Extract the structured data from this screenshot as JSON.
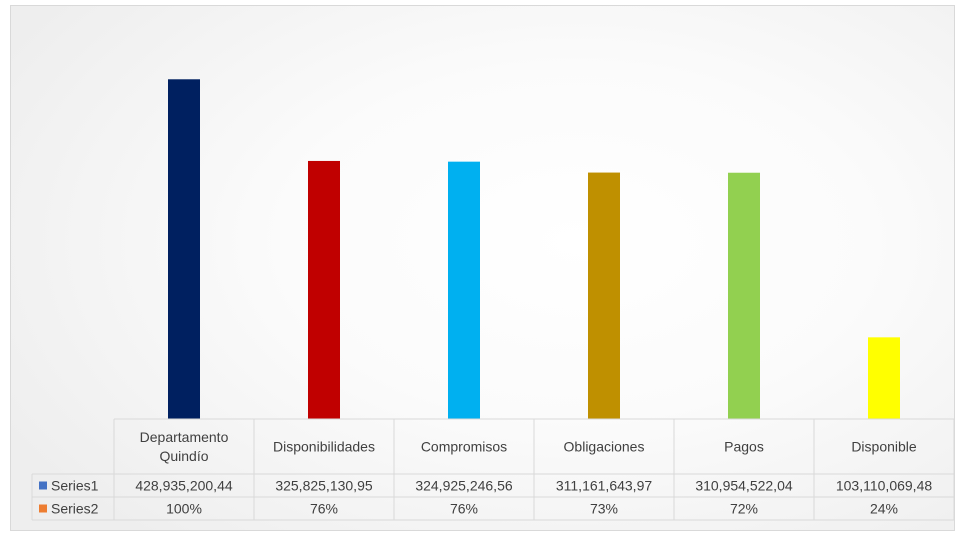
{
  "chart_data": {
    "type": "bar",
    "categories": [
      [
        "Departamento",
        "Quindío"
      ],
      [
        "Disponibilidades"
      ],
      [
        "Compromisos"
      ],
      [
        "Obligaciones"
      ],
      [
        "Pagos"
      ],
      [
        "Disponible"
      ]
    ],
    "category_colors": [
      "#002060",
      "#c00000",
      "#00b0f0",
      "#bf9000",
      "#92d050",
      "#ffff00"
    ],
    "series": [
      {
        "name": "Series1",
        "color": "#4472c4",
        "values": [
          428935200.44,
          325825130.95,
          324925246.56,
          311161643.97,
          310954522.04,
          103110069.48
        ],
        "labels": [
          "428,935,200,44",
          "325,825,130,95",
          "324,925,246,56",
          "311,161,643,97",
          "310,954,522,04",
          "103,110,069,48"
        ]
      },
      {
        "name": "Series2",
        "color": "#ed7d31",
        "values": [
          1.0,
          0.76,
          0.76,
          0.73,
          0.72,
          0.24
        ],
        "labels": [
          "100%",
          "76%",
          "76%",
          "73%",
          "72%",
          "24%"
        ]
      }
    ],
    "ylim": [
      0,
      500000000
    ],
    "grid": false,
    "legend": "data-table"
  }
}
